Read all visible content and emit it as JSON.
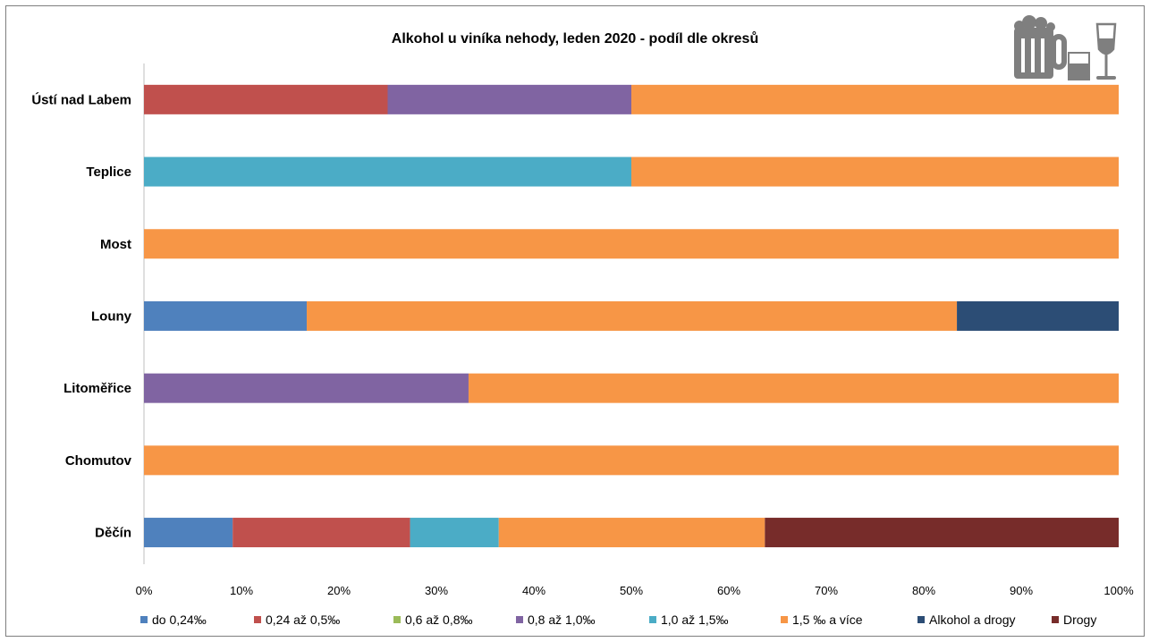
{
  "chart_data": {
    "type": "bar",
    "orientation": "horizontal",
    "stacked": "percent",
    "title": "Alkohol u viníka nehody, leden 2020 - podíl dle okresů",
    "categories": [
      "Ústí nad Labem",
      "Teplice",
      "Most",
      "Louny",
      "Litoměřice",
      "Chomutov",
      "Děčín"
    ],
    "series": [
      {
        "name": "do 0,24‰",
        "color": "#4f81bd",
        "values": [
          0,
          0,
          0,
          16.7,
          0,
          0,
          9.1
        ]
      },
      {
        "name": "0,24 až 0,5‰",
        "color": "#c0504d",
        "values": [
          25,
          0,
          0,
          0,
          0,
          0,
          18.2
        ]
      },
      {
        "name": "0,6 až 0,8‰",
        "color": "#9bbb59",
        "values": [
          0,
          0,
          0,
          0,
          0,
          0,
          0
        ]
      },
      {
        "name": "0,8 až 1,0‰",
        "color": "#8064a2",
        "values": [
          25,
          0,
          0,
          0,
          33.3,
          0,
          0
        ]
      },
      {
        "name": "1,0 až 1,5‰",
        "color": "#4bacc6",
        "values": [
          0,
          50,
          0,
          0,
          0,
          0,
          9.1
        ]
      },
      {
        "name": "1,5 ‰ a více",
        "color": "#f79646",
        "values": [
          50,
          50,
          100,
          66.7,
          66.7,
          100,
          27.3
        ]
      },
      {
        "name": "Alkohol a drogy",
        "color": "#2c4d75",
        "values": [
          0,
          0,
          0,
          16.6,
          0,
          0,
          0
        ]
      },
      {
        "name": "Drogy",
        "color": "#772c2a",
        "values": [
          0,
          0,
          0,
          0,
          0,
          0,
          36.3
        ]
      }
    ],
    "x_ticks": [
      "0%",
      "10%",
      "20%",
      "30%",
      "40%",
      "50%",
      "60%",
      "70%",
      "80%",
      "90%",
      "100%"
    ],
    "xlim": [
      0,
      100
    ],
    "grid": false,
    "legend_position": "bottom",
    "decoration_icons": [
      "beer-mug-icon",
      "whisky-glass-icon",
      "wine-glass-icon"
    ],
    "icon_color": "#7f7f7f"
  }
}
